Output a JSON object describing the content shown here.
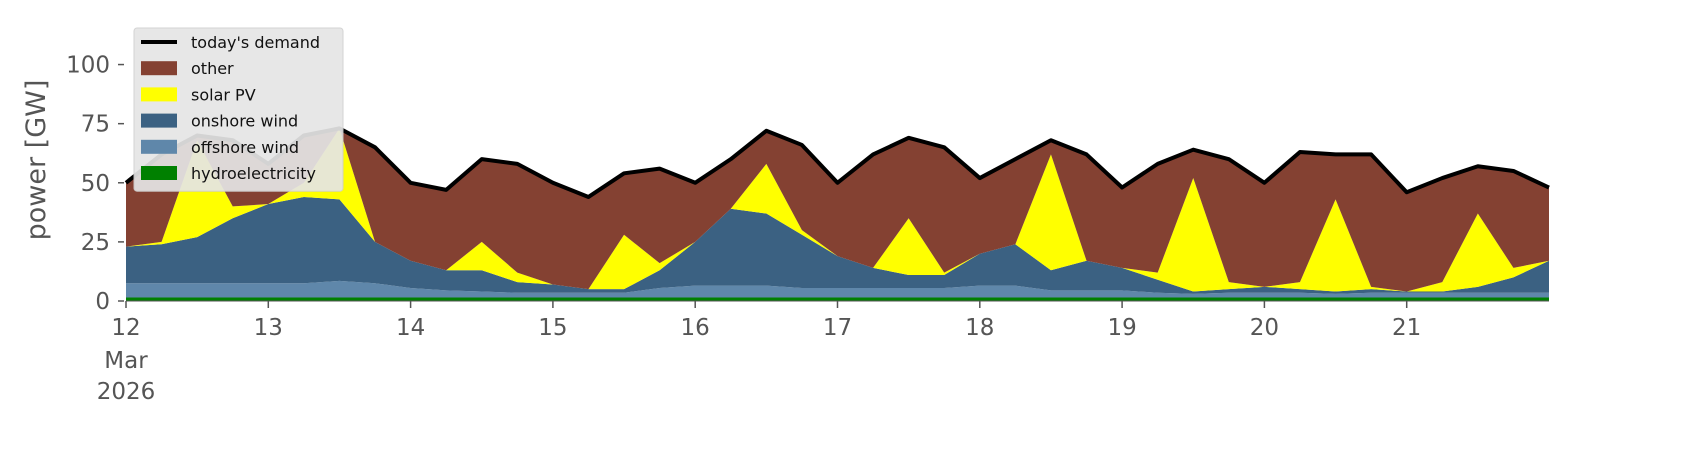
{
  "chart_data": {
    "type": "stacked_area",
    "ylabel": "power [GW]",
    "x": [
      12,
      12.25,
      12.5,
      12.75,
      13,
      13.25,
      13.5,
      13.75,
      14,
      14.25,
      14.5,
      14.75,
      15,
      15.25,
      15.5,
      15.75,
      16,
      16.25,
      16.5,
      16.75,
      17,
      17.25,
      17.5,
      17.75,
      18,
      18.25,
      18.5,
      18.75,
      19,
      19.25,
      19.5,
      19.75,
      20,
      20.25,
      20.5,
      20.75,
      21,
      21.25,
      21.5,
      21.75,
      22
    ],
    "xlim": [
      12,
      22
    ],
    "xticks": [
      12,
      13,
      14,
      15,
      16,
      17,
      18,
      19,
      20,
      21
    ],
    "x_start_sublabels": [
      "Mar",
      "2026"
    ],
    "ylim": [
      0,
      118
    ],
    "yticks": [
      0,
      25,
      50,
      75,
      100
    ],
    "legend": "upper left",
    "demand": {
      "name": "today's demand",
      "color": "#000000",
      "values": [
        50,
        62,
        70,
        68,
        58,
        70,
        73,
        65,
        50,
        47,
        60,
        58,
        50,
        44,
        54,
        56,
        50,
        60,
        72,
        66,
        50,
        62,
        69,
        65,
        52,
        60,
        68,
        62,
        48,
        58,
        64,
        60,
        50,
        63,
        62,
        62,
        46,
        52,
        57,
        55,
        48
      ]
    },
    "series": [
      {
        "name": "hydroelectricity",
        "color": "#008000",
        "values": [
          1.5,
          1.5,
          1.5,
          1.5,
          1.5,
          1.5,
          1.5,
          1.5,
          1.5,
          1.5,
          1.5,
          1.5,
          1.5,
          1.5,
          1.5,
          1.5,
          1.5,
          1.5,
          1.5,
          1.5,
          1.5,
          1.5,
          1.5,
          1.5,
          1.5,
          1.5,
          1.5,
          1.5,
          1.5,
          1.5,
          1.5,
          1.5,
          1.5,
          1.5,
          1.5,
          1.5,
          1.5,
          1.5,
          1.5,
          1.5,
          1.5
        ]
      },
      {
        "name": "offshore wind",
        "color": "#5f87aa",
        "values": [
          6,
          6,
          6,
          6,
          6,
          6,
          7,
          6,
          4,
          3,
          2.5,
          2,
          2,
          2,
          2,
          4,
          5,
          5,
          5,
          4,
          4,
          4,
          4,
          4,
          5,
          5,
          3,
          3,
          3,
          2,
          1.5,
          2,
          2,
          2,
          1.5,
          2,
          2,
          2,
          2,
          2,
          2
        ]
      },
      {
        "name": "onshore wind",
        "color": "#3b6182",
        "values": [
          15.5,
          16.5,
          19.5,
          27.5,
          33.5,
          36.5,
          34.5,
          17.5,
          11.5,
          8.5,
          9,
          4.5,
          3.5,
          1.5,
          1.5,
          7.5,
          18.5,
          32.5,
          30.5,
          22.5,
          13.5,
          8.5,
          5.5,
          5.5,
          13.5,
          17.5,
          8.5,
          12.5,
          9.5,
          5.5,
          1,
          1.5,
          2.5,
          1.5,
          1,
          1.5,
          0.5,
          0.5,
          2.5,
          6.5,
          13.5
        ]
      },
      {
        "name": "solar PV",
        "color": "#ffff00",
        "values": [
          0,
          1,
          41,
          5,
          0,
          6,
          30,
          0,
          0,
          0,
          12,
          4,
          0,
          0,
          23,
          3,
          0,
          0,
          21,
          2,
          0,
          0,
          24,
          1,
          0,
          0,
          49,
          0,
          0,
          3,
          48,
          3,
          0,
          3,
          39,
          1,
          0,
          4,
          31,
          4,
          0
        ]
      },
      {
        "name": "other",
        "color": "#844132",
        "values": [
          27,
          37,
          2,
          28,
          17,
          20,
          0,
          40,
          33,
          34,
          35,
          46,
          43,
          39,
          26,
          40,
          25,
          21,
          14,
          36,
          31,
          48,
          34,
          53,
          32,
          36,
          6,
          45,
          34,
          46,
          12,
          52,
          44,
          55,
          19,
          56,
          42,
          44,
          20,
          41,
          31
        ]
      }
    ]
  }
}
